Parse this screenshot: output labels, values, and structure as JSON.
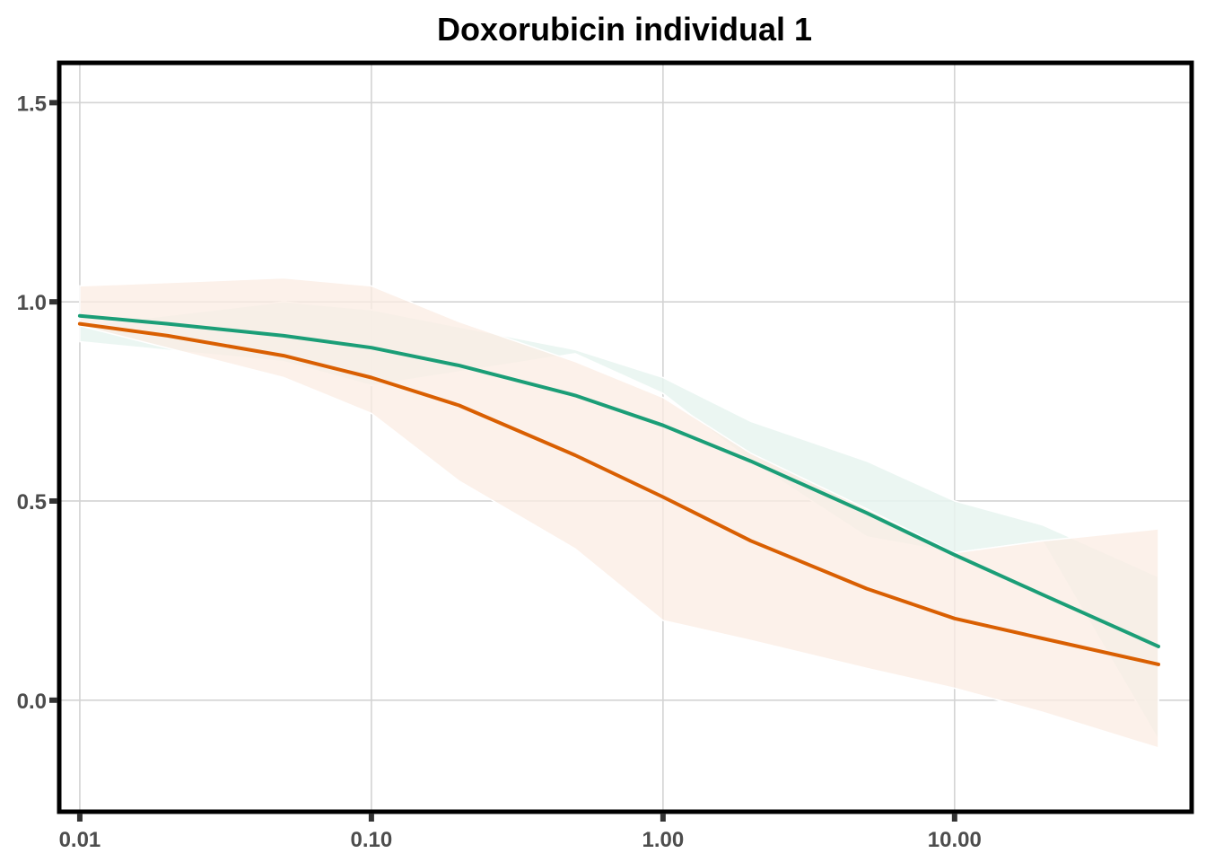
{
  "chart_data": {
    "type": "line",
    "title": "Doxorubicin individual 1",
    "xlabel": "",
    "ylabel": "",
    "x_scale": "log10",
    "xlim": [
      0.0085,
      65
    ],
    "ylim": [
      -0.28,
      1.6
    ],
    "x_ticks": [
      0.01,
      0.1,
      1,
      10
    ],
    "x_tick_labels": [
      "0.01",
      "0.10",
      "1.00",
      "10.00"
    ],
    "y_ticks": [
      0.0,
      0.5,
      1.0,
      1.5
    ],
    "y_tick_labels": [
      "0.0",
      "0.5",
      "1.0",
      "1.5"
    ],
    "grid": true,
    "legend": "none",
    "colors": {
      "teal": "#1b9e77",
      "orange": "#d95f02",
      "teal_ribbon": "#e8f4f0",
      "orange_ribbon": "#fbece3",
      "overlap_ribbon": "#e6e6da"
    },
    "series": [
      {
        "color": "#1b9e77",
        "x": [
          0.01,
          0.02,
          0.05,
          0.1,
          0.2,
          0.5,
          1,
          2,
          5,
          10,
          20,
          50
        ],
        "y": [
          0.965,
          0.945,
          0.915,
          0.885,
          0.84,
          0.765,
          0.69,
          0.6,
          0.47,
          0.365,
          0.265,
          0.135
        ],
        "band_x": [
          0.01,
          0.05,
          0.1,
          0.5,
          1,
          2,
          5,
          10,
          20,
          50
        ],
        "band_lower": [
          0.9,
          0.85,
          0.79,
          0.87,
          0.77,
          0.6,
          0.41,
          0.37,
          0.4,
          -0.1
        ],
        "band_upper": [
          0.94,
          1.0,
          0.98,
          0.88,
          0.81,
          0.7,
          0.6,
          0.5,
          0.44,
          0.31
        ]
      },
      {
        "color": "#d95f02",
        "x": [
          0.01,
          0.02,
          0.05,
          0.1,
          0.2,
          0.5,
          1,
          2,
          5,
          10,
          20,
          50
        ],
        "y": [
          0.945,
          0.915,
          0.865,
          0.81,
          0.74,
          0.615,
          0.51,
          0.4,
          0.28,
          0.205,
          0.155,
          0.09
        ],
        "band_x": [
          0.01,
          0.05,
          0.1,
          0.2,
          0.5,
          1,
          2,
          5,
          10,
          20,
          50
        ],
        "band_lower": [
          0.94,
          0.81,
          0.72,
          0.55,
          0.38,
          0.2,
          0.15,
          0.08,
          0.03,
          -0.03,
          -0.12
        ],
        "band_upper": [
          1.04,
          1.06,
          1.04,
          0.95,
          0.85,
          0.76,
          0.62,
          0.48,
          0.37,
          0.4,
          0.43
        ]
      }
    ]
  }
}
